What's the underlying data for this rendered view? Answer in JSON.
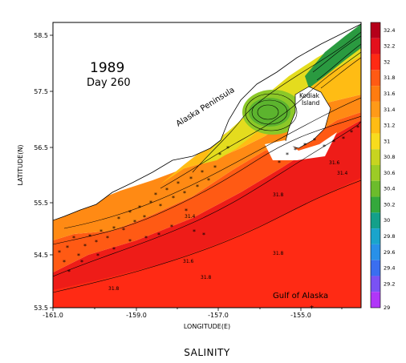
{
  "map": {
    "title_year": "1989",
    "title_day": "Day 260",
    "bottom_title": "SALINITY",
    "xlabel": "LONGITUDE(E)",
    "ylabel": "LATITUDE(N)",
    "x_ticks": [
      "-161.0",
      "-159.0",
      "-157.0",
      "-155.0"
    ],
    "y_ticks": [
      "58.5",
      "57.5",
      "56.5",
      "55.5",
      "54.5",
      "53.5"
    ],
    "places": {
      "peninsula": "Alaska Peninsula",
      "kodiak_line1": "Kodiak",
      "kodiak_line2": "Island",
      "gulf": "Gulf of Alaska"
    },
    "contour_labels": [
      "31.8",
      "31.8",
      "31.8",
      "31.8",
      "31.6",
      "31.6",
      "31.4",
      "31.4"
    ],
    "colorbar": {
      "levels": [
        "32.4",
        "32.2",
        "32",
        "31.8",
        "31.6",
        "31.4",
        "31.2",
        "31",
        "30.8",
        "30.6",
        "30.4",
        "30.2",
        "30",
        "29.8",
        "29.6",
        "29.4",
        "29.2",
        "29"
      ],
      "colors": [
        "#b5001a",
        "#e3101c",
        "#ff2a14",
        "#ff5a14",
        "#ff7c10",
        "#ff9a18",
        "#ffbc14",
        "#f8dc1e",
        "#c8d420",
        "#9ccc26",
        "#6cbc2c",
        "#34a83c",
        "#14a08a",
        "#1aa4cc",
        "#2890e8",
        "#3a6ef0",
        "#7a52f4",
        "#b036f8"
      ]
    }
  }
}
